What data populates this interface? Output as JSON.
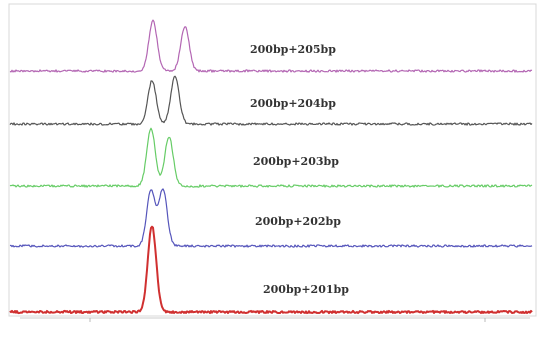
{
  "chart_data": {
    "type": "line",
    "title": "",
    "xlabel": "",
    "ylabel": "",
    "grid": false,
    "series": [
      {
        "name": "200bp+205bp",
        "color": "#b366b3",
        "peaks": [
          {
            "x": 153,
            "height": 1.0
          },
          {
            "x": 185,
            "height": 0.9
          }
        ]
      },
      {
        "name": "200bp+204bp",
        "color": "#555555",
        "peaks": [
          {
            "x": 152,
            "height": 0.9
          },
          {
            "x": 175,
            "height": 1.0
          }
        ]
      },
      {
        "name": "200bp+203bp",
        "color": "#66cc66",
        "peaks": [
          {
            "x": 151,
            "height": 1.0
          },
          {
            "x": 169,
            "height": 0.85
          }
        ]
      },
      {
        "name": "200bp+202bp",
        "color": "#5555bb",
        "peaks": [
          {
            "x": 151,
            "height": 1.0
          },
          {
            "x": 163,
            "height": 1.0
          }
        ]
      },
      {
        "name": "200bp+201bp",
        "color": "#d03030",
        "peaks": [
          {
            "x": 152,
            "height": 1.0
          }
        ]
      }
    ],
    "x_ticks": [
      ""
    ]
  }
}
